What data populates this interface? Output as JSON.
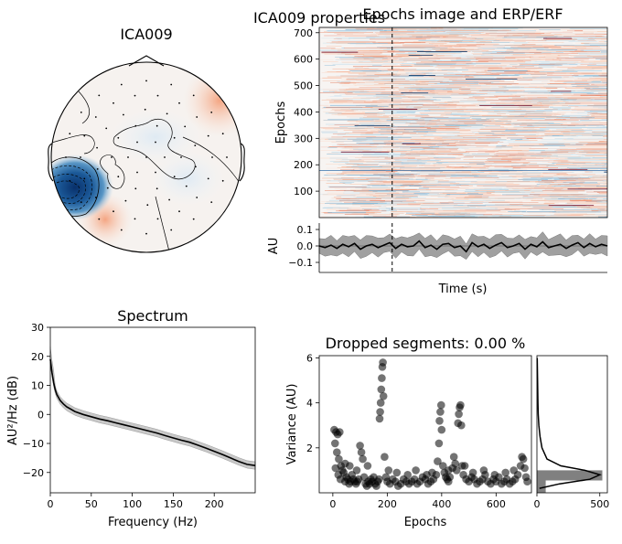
{
  "figure": {
    "suptitle": "ICA009 properties"
  },
  "chart_data": [
    {
      "type": "topomap",
      "title": "ICA009",
      "colormap": "RdBu_r",
      "notes": [
        "negative blob at left temporal region",
        "weak positive at right and bottom-center"
      ]
    },
    {
      "type": "heatmap",
      "title": "Epochs image and ERP/ERF",
      "ylabel": "Epochs",
      "ylim": [
        0,
        720
      ],
      "yticks": [
        100,
        200,
        300,
        400,
        500,
        600,
        700
      ],
      "colormap": "RdBu_r",
      "event_line": "dashed vertical at t = 0"
    },
    {
      "type": "line",
      "xlabel": "Time (s)",
      "ylabel": "AU",
      "ylim": [
        -0.15,
        0.15
      ],
      "yticks": [
        0.1,
        0.0,
        -0.1
      ],
      "ytick_labels": [
        "0.1",
        "0.0",
        "−0.1"
      ],
      "x_range": [
        -0.5,
        1.5
      ],
      "event_time": 0,
      "series": [
        {
          "values": [
            0.0,
            -0.01,
            0.005,
            -0.015,
            0.01,
            -0.005,
            0.015,
            -0.02,
            0.0,
            0.01,
            -0.01,
            0.005,
            0.02,
            -0.015,
            0.01,
            -0.005,
            0.0,
            0.03,
            -0.01,
            0.005,
            -0.02,
            0.01,
            0.015,
            -0.01,
            0.0,
            -0.035,
            0.02,
            -0.005,
            0.01,
            -0.015,
            0.005,
            0.02,
            -0.01,
            0.0,
            0.015,
            -0.02,
            0.01,
            -0.005,
            0.025,
            -0.01,
            0.0,
            0.01,
            -0.015,
            0.005,
            0.02,
            -0.01,
            0.015,
            -0.005,
            0.01,
            0.0
          ]
        }
      ],
      "band_halfwidth": 0.045
    },
    {
      "type": "line",
      "title": "Spectrum",
      "xlabel": "Frequency (Hz)",
      "ylabel": "AU²/Hz (dB)",
      "xlim": [
        0,
        250
      ],
      "ylim": [
        -27,
        30
      ],
      "xticks": [
        0,
        50,
        100,
        150,
        200
      ],
      "yticks": [
        30,
        20,
        10,
        0,
        -10,
        -20
      ],
      "ytick_labels": [
        "30",
        "20",
        "10",
        "0",
        "−10",
        "−20"
      ],
      "series": [
        {
          "x": [
            0,
            2,
            4,
            6,
            8,
            12,
            16,
            20,
            25,
            30,
            40,
            50,
            60,
            70,
            80,
            90,
            100,
            110,
            120,
            130,
            140,
            150,
            160,
            170,
            180,
            190,
            200,
            210,
            220,
            230,
            240,
            250
          ],
          "y": [
            19.0,
            14.5,
            11.0,
            8.5,
            6.8,
            4.8,
            3.6,
            2.6,
            1.8,
            1.0,
            0.0,
            -0.8,
            -1.6,
            -2.2,
            -2.9,
            -3.6,
            -4.3,
            -5.0,
            -5.7,
            -6.4,
            -7.3,
            -8.1,
            -8.9,
            -9.6,
            -10.6,
            -11.6,
            -12.7,
            -13.8,
            -15.0,
            -16.2,
            -17.2,
            -17.6
          ]
        }
      ],
      "band_halfwidth": 1.3
    },
    {
      "type": "scatter",
      "title": "Dropped segments: 0.00 %",
      "xlabel": "Epochs",
      "ylabel": "Variance (AU)",
      "xlim": [
        -50,
        730
      ],
      "ylim": [
        0,
        6.1
      ],
      "xticks": [
        0,
        200,
        400,
        600
      ],
      "yticks": [
        2,
        4,
        6
      ],
      "points": [
        [
          5,
          2.8
        ],
        [
          12,
          2.7
        ],
        [
          18,
          2.6
        ],
        [
          25,
          2.7
        ],
        [
          8,
          2.2
        ],
        [
          15,
          1.8
        ],
        [
          22,
          1.5
        ],
        [
          30,
          1.2
        ],
        [
          35,
          1.0
        ],
        [
          40,
          0.9
        ],
        [
          10,
          1.1
        ],
        [
          20,
          0.8
        ],
        [
          28,
          0.6
        ],
        [
          45,
          0.5
        ],
        [
          50,
          0.7
        ],
        [
          55,
          0.6
        ],
        [
          60,
          0.4
        ],
        [
          65,
          0.5
        ],
        [
          70,
          0.8
        ],
        [
          75,
          0.6
        ],
        [
          80,
          0.5
        ],
        [
          85,
          0.4
        ],
        [
          90,
          0.5
        ],
        [
          95,
          0.6
        ],
        [
          100,
          2.1
        ],
        [
          105,
          1.8
        ],
        [
          110,
          1.5
        ],
        [
          115,
          0.7
        ],
        [
          120,
          0.4
        ],
        [
          125,
          0.3
        ],
        [
          130,
          0.5
        ],
        [
          135,
          0.4
        ],
        [
          140,
          0.6
        ],
        [
          145,
          0.5
        ],
        [
          150,
          0.7
        ],
        [
          155,
          0.4
        ],
        [
          160,
          0.3
        ],
        [
          165,
          0.5
        ],
        [
          170,
          0.6
        ],
        [
          172,
          3.3
        ],
        [
          174,
          3.6
        ],
        [
          176,
          4.0
        ],
        [
          178,
          4.6
        ],
        [
          180,
          5.1
        ],
        [
          182,
          5.6
        ],
        [
          184,
          5.8
        ],
        [
          186,
          4.3
        ],
        [
          190,
          1.6
        ],
        [
          195,
          0.7
        ],
        [
          200,
          0.5
        ],
        [
          210,
          0.4
        ],
        [
          220,
          0.6
        ],
        [
          230,
          0.5
        ],
        [
          240,
          0.3
        ],
        [
          250,
          0.4
        ],
        [
          260,
          0.6
        ],
        [
          270,
          0.5
        ],
        [
          280,
          0.4
        ],
        [
          290,
          0.5
        ],
        [
          300,
          0.6
        ],
        [
          310,
          0.4
        ],
        [
          320,
          0.5
        ],
        [
          330,
          0.7
        ],
        [
          340,
          0.6
        ],
        [
          350,
          0.4
        ],
        [
          360,
          0.5
        ],
        [
          370,
          0.6
        ],
        [
          380,
          0.8
        ],
        [
          385,
          1.4
        ],
        [
          390,
          2.2
        ],
        [
          392,
          3.2
        ],
        [
          395,
          3.6
        ],
        [
          398,
          3.9
        ],
        [
          400,
          2.8
        ],
        [
          405,
          1.2
        ],
        [
          410,
          0.9
        ],
        [
          415,
          0.7
        ],
        [
          420,
          0.6
        ],
        [
          425,
          0.5
        ],
        [
          430,
          0.7
        ],
        [
          440,
          1.1
        ],
        [
          445,
          1.6
        ],
        [
          450,
          1.3
        ],
        [
          455,
          1.0
        ],
        [
          460,
          3.1
        ],
        [
          463,
          3.5
        ],
        [
          466,
          3.8
        ],
        [
          469,
          3.9
        ],
        [
          472,
          3.0
        ],
        [
          475,
          1.2
        ],
        [
          480,
          0.8
        ],
        [
          490,
          0.6
        ],
        [
          500,
          0.5
        ],
        [
          510,
          0.7
        ],
        [
          520,
          0.6
        ],
        [
          530,
          0.4
        ],
        [
          540,
          0.5
        ],
        [
          550,
          0.6
        ],
        [
          560,
          0.8
        ],
        [
          570,
          0.5
        ],
        [
          580,
          0.4
        ],
        [
          590,
          0.6
        ],
        [
          600,
          0.5
        ],
        [
          610,
          0.7
        ],
        [
          620,
          0.4
        ],
        [
          630,
          0.5
        ],
        [
          640,
          0.6
        ],
        [
          650,
          0.4
        ],
        [
          660,
          0.5
        ],
        [
          670,
          0.6
        ],
        [
          680,
          0.8
        ],
        [
          690,
          1.2
        ],
        [
          695,
          1.6
        ],
        [
          700,
          1.5
        ],
        [
          705,
          1.1
        ],
        [
          710,
          0.7
        ],
        [
          715,
          0.5
        ],
        [
          45,
          1.3
        ],
        [
          62,
          1.2
        ],
        [
          88,
          1.0
        ],
        [
          128,
          1.2
        ],
        [
          205,
          1.0
        ],
        [
          235,
          0.9
        ],
        [
          275,
          0.8
        ],
        [
          305,
          1.0
        ],
        [
          345,
          0.8
        ],
        [
          365,
          0.9
        ],
        [
          425,
          1.0
        ],
        [
          485,
          1.2
        ],
        [
          515,
          0.9
        ],
        [
          555,
          1.0
        ],
        [
          595,
          0.8
        ],
        [
          635,
          0.9
        ],
        [
          665,
          1.0
        ]
      ]
    },
    {
      "type": "histogram",
      "xlim": [
        0,
        560
      ],
      "xticks": [
        0,
        500
      ],
      "orientation": "horizontal",
      "bars": [
        {
          "y0": 0.0,
          "y1": 0.55,
          "count": 70
        },
        {
          "y0": 0.55,
          "y1": 1.0,
          "count": 520
        }
      ],
      "kde": [
        [
          0.2,
          20
        ],
        [
          0.4,
          180
        ],
        [
          0.6,
          420
        ],
        [
          0.8,
          500
        ],
        [
          1.0,
          380
        ],
        [
          1.2,
          190
        ],
        [
          1.5,
          80
        ],
        [
          2.0,
          40
        ],
        [
          2.5,
          25
        ],
        [
          3.0,
          15
        ],
        [
          3.5,
          10
        ],
        [
          4.0,
          8
        ],
        [
          5.0,
          5
        ],
        [
          6.0,
          2
        ]
      ]
    }
  ]
}
